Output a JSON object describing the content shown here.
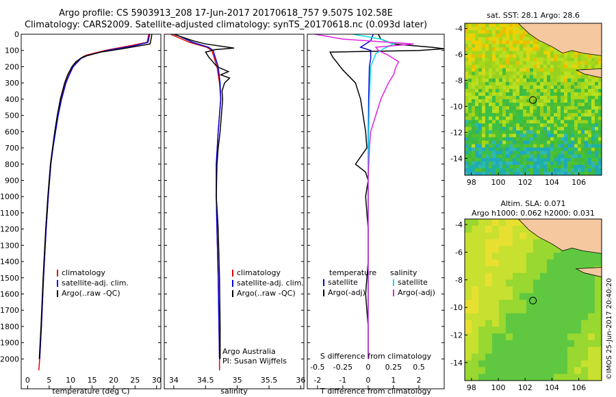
{
  "titles": {
    "line1": "Argo profile: CS 5903913_208 17-Jun-2017 20170618_757 9.507S 102.58E",
    "line2": "Climatology: CARS2009. Satellite-adjusted climatology: synTS_20170618.nc (0.093d later)"
  },
  "footer": {
    "imos": "©IMOS 25-Jun-2017 20:40:20",
    "argo_australia": "Argo Australia",
    "pi": "PI: Susan Wijffels"
  },
  "colors": {
    "climatology": "#e00000",
    "satellite": "#0000e0",
    "argo": "#000000",
    "sal_satellite": "#00e0e0",
    "sal_argo": "#e020e0",
    "land": "#f5c8a0"
  },
  "chart_data": [
    {
      "type": "line",
      "panel": "temperature",
      "xlabel": "temperature (deg C)",
      "ylabel": "",
      "xlim": [
        -1.5,
        31
      ],
      "ylim": [
        2070,
        0
      ],
      "xticks": [
        0,
        5,
        10,
        15,
        20,
        25,
        30
      ],
      "yticks": [
        0,
        100,
        200,
        300,
        400,
        500,
        600,
        700,
        800,
        900,
        1000,
        1100,
        1200,
        1300,
        1400,
        1500,
        1600,
        1700,
        1800,
        1900,
        2000
      ],
      "legend": [
        "climatology",
        "satellite-adj. clim.",
        "Argo(..raw -QC)"
      ],
      "series": [
        {
          "name": "climatology",
          "color": "#e00000",
          "depth": [
            0,
            50,
            70,
            100,
            130,
            150,
            200,
            250,
            300,
            400,
            500,
            600,
            700,
            800,
            1000,
            1200,
            1500,
            1800,
            2000,
            2070
          ],
          "values": [
            28.2,
            27.8,
            24,
            18,
            13.5,
            12.2,
            10.5,
            9.6,
            8.8,
            7.8,
            7.0,
            6.4,
            5.9,
            5.4,
            4.8,
            4.3,
            3.7,
            3.2,
            2.8,
            2.6
          ]
        },
        {
          "name": "satellite-adj. clim.",
          "color": "#0000e0",
          "depth": [
            0,
            50,
            75,
            100,
            130,
            150,
            200,
            250,
            300,
            400,
            500,
            600,
            700,
            800,
            1000,
            1200,
            1500,
            1800,
            2000
          ],
          "values": [
            28.4,
            28.0,
            24.2,
            18.5,
            14,
            12.4,
            10.6,
            9.7,
            8.9,
            7.9,
            7.1,
            6.5,
            5.9,
            5.4,
            4.8,
            4.3,
            3.7,
            3.2,
            2.8
          ]
        },
        {
          "name": "Argo(..raw -QC)",
          "color": "#000000",
          "depth": [
            0,
            20,
            60,
            90,
            110,
            140,
            170,
            200,
            250,
            300,
            400,
            500,
            600,
            700,
            800,
            1000,
            1200,
            1500,
            1800,
            2000
          ],
          "values": [
            28.9,
            28.8,
            28.5,
            22,
            17,
            12.8,
            11.2,
            10.3,
            9.3,
            8.6,
            7.6,
            6.9,
            6.3,
            5.8,
            5.3,
            4.7,
            4.2,
            3.6,
            3.1,
            2.7
          ]
        }
      ]
    },
    {
      "type": "line",
      "panel": "salinity",
      "xlabel": "salinity",
      "ylabel": "",
      "xlim": [
        33.85,
        36.05
      ],
      "ylim": [
        2070,
        0
      ],
      "xticks": [
        34,
        34.5,
        35,
        35.5,
        36
      ],
      "legend": [
        "climatology",
        "satellite-adj. clim.",
        "Argo(..raw -QC)"
      ],
      "series": [
        {
          "name": "climatology",
          "color": "#e00000",
          "depth": [
            0,
            50,
            80,
            100,
            150,
            200,
            300,
            400,
            600,
            800,
            1000,
            1200,
            1500,
            2000,
            2070
          ],
          "values": [
            33.95,
            34.25,
            34.52,
            34.6,
            34.64,
            34.68,
            34.72,
            34.74,
            34.7,
            34.67,
            34.67,
            34.68,
            34.7,
            34.72,
            34.72
          ]
        },
        {
          "name": "satellite-adj. clim.",
          "color": "#0000e0",
          "depth": [
            0,
            50,
            80,
            100,
            150,
            200,
            300,
            400,
            600,
            800,
            1000,
            1200,
            1500,
            2000
          ],
          "values": [
            34.02,
            34.3,
            34.55,
            34.62,
            34.66,
            34.7,
            34.73,
            34.74,
            34.7,
            34.67,
            34.67,
            34.68,
            34.7,
            34.72
          ]
        },
        {
          "name": "Argo(..raw -QC)",
          "color": "#000000",
          "depth": [
            0,
            40,
            60,
            85,
            95,
            110,
            140,
            200,
            230,
            250,
            270,
            300,
            350,
            400,
            500,
            600,
            700,
            800,
            1000,
            1200,
            1500,
            1800,
            2000
          ],
          "values": [
            34.0,
            34.3,
            34.5,
            34.95,
            34.65,
            34.5,
            34.55,
            34.68,
            34.86,
            34.74,
            34.88,
            34.8,
            34.76,
            34.77,
            34.75,
            34.73,
            34.7,
            34.68,
            34.67,
            34.7,
            34.72,
            34.73,
            34.73
          ]
        }
      ]
    },
    {
      "type": "line",
      "panel": "difference",
      "xlabel": "T difference from climatology",
      "xlabel_top": "S difference from climatology",
      "xlim": [
        -2.4,
        3.0
      ],
      "ylim": [
        2070,
        0
      ],
      "xticks": [
        -2,
        -1,
        0,
        1,
        2
      ],
      "xticks_S": [
        "-0.5",
        "-0.25",
        "0",
        "0.25",
        "0.5"
      ],
      "xticks_S_pos": [
        -2,
        -1,
        0,
        1,
        2
      ],
      "legend_headers": [
        "temperature",
        "salinity"
      ],
      "legend": [
        "satellite",
        "Argo(-adj)",
        "satellite",
        "Argo(-adj)"
      ],
      "series": [
        {
          "name": "satellite",
          "color": "#0000e0",
          "depth": [
            0,
            40,
            80,
            100,
            150,
            200,
            400,
            800,
            1200,
            2000
          ],
          "values": [
            0.2,
            0.1,
            -0.3,
            0.1,
            0.1,
            0.05,
            0.02,
            0.0,
            0.0,
            0.0
          ]
        },
        {
          "name": "Argo(-adj)",
          "color": "#000000",
          "depth": [
            0,
            30,
            60,
            80,
            90,
            100,
            110,
            140,
            180,
            220,
            300,
            400,
            500,
            600,
            700,
            800,
            850,
            900,
            1000,
            1200,
            1400,
            1600,
            1800,
            2000
          ],
          "values": [
            0.4,
            0.5,
            1.0,
            2.5,
            3.0,
            2.0,
            -1.5,
            -1.4,
            -1.2,
            -1.0,
            -0.5,
            -0.3,
            -0.2,
            -0.1,
            -0.05,
            -0.5,
            -0.1,
            0.0,
            -0.1,
            0.0,
            0.0,
            -0.1,
            0.0,
            0.0
          ]
        },
        {
          "name": "satellite",
          "color": "#00e0e0",
          "depth": [
            0,
            30,
            60,
            90,
            120,
            200,
            400,
            800,
            1200,
            1600,
            2000
          ],
          "values": [
            -0.6,
            0.5,
            1.0,
            0.6,
            0.3,
            0.1,
            0.05,
            0.0,
            0.0,
            0.0,
            0.0
          ]
        },
        {
          "name": "Argo(-adj)",
          "color": "#e020e0",
          "depth": [
            0,
            30,
            60,
            80,
            100,
            130,
            170,
            200,
            250,
            300,
            400,
            500,
            600,
            700,
            900,
            1200,
            1500,
            1800,
            2000
          ],
          "values": [
            -2.1,
            -1.0,
            1.8,
            0.3,
            0.4,
            0.8,
            1.2,
            1.1,
            1.0,
            0.8,
            0.5,
            0.3,
            0.1,
            0.05,
            0.0,
            0.0,
            0.0,
            0.0,
            0.0
          ]
        }
      ]
    },
    {
      "type": "heatmap",
      "panel": "sst_map",
      "title": "sat. SST: 28.1  Argo: 28.6",
      "xlim": [
        97.5,
        107.7
      ],
      "ylim": [
        -15.3,
        -3.6
      ],
      "xticks": [
        98,
        100,
        102,
        104,
        106
      ],
      "yticks": [
        -4,
        -6,
        -8,
        -10,
        -12,
        -14
      ],
      "marker": [
        102.58,
        -9.507
      ]
    },
    {
      "type": "heatmap",
      "panel": "sla_map",
      "title": "Altim. SLA: 0.071",
      "subtitle": "Argo h1000: 0.062 h2000: 0.031",
      "xlim": [
        97.5,
        107.7
      ],
      "ylim": [
        -15.3,
        -3.6
      ],
      "xticks": [
        98,
        100,
        102,
        104,
        106
      ],
      "yticks": [
        -4,
        -6,
        -8,
        -10,
        -12,
        -14
      ],
      "marker": [
        102.58,
        -9.507
      ]
    }
  ]
}
